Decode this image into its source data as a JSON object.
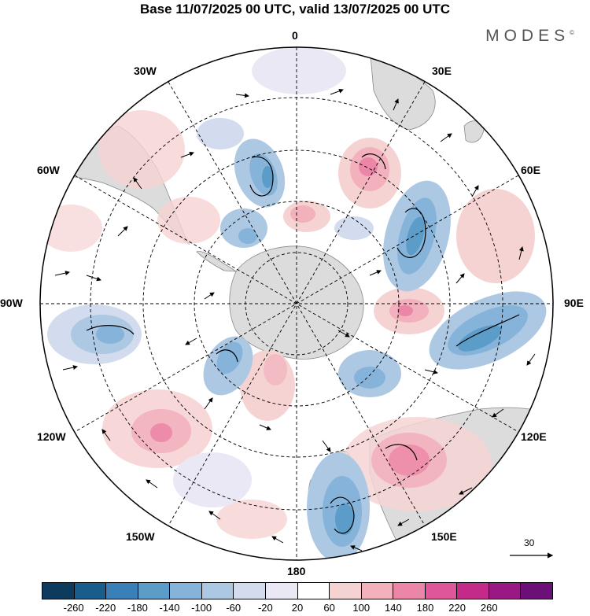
{
  "title": "Base 11/07/2025 00 UTC, valid 13/07/2025 00 UTC",
  "brand": "MODES",
  "brand_mark": "©",
  "map": {
    "projection": "south-polar-stereographic",
    "longitude_labels": [
      "0",
      "30E",
      "60E",
      "90E",
      "120E",
      "150E",
      "180",
      "150W",
      "120W",
      "90W",
      "60W",
      "30W"
    ],
    "vector_scale_label": "30"
  },
  "colorbar": {
    "colors": [
      "#0d3b5e",
      "#1a5c8c",
      "#3a7fb5",
      "#5c9cc9",
      "#85b3d9",
      "#adc8e3",
      "#d2dcee",
      "#eae8f4",
      "#ffffff",
      "#f6d3d3",
      "#f2b1bc",
      "#ec86a8",
      "#e0569a",
      "#c42a8a",
      "#9a1884",
      "#6a1077"
    ],
    "tick_labels": [
      "-260",
      "-220",
      "-180",
      "-140",
      "-100",
      "-60",
      "-20",
      "20",
      "60",
      "100",
      "140",
      "180",
      "220",
      "260"
    ]
  }
}
